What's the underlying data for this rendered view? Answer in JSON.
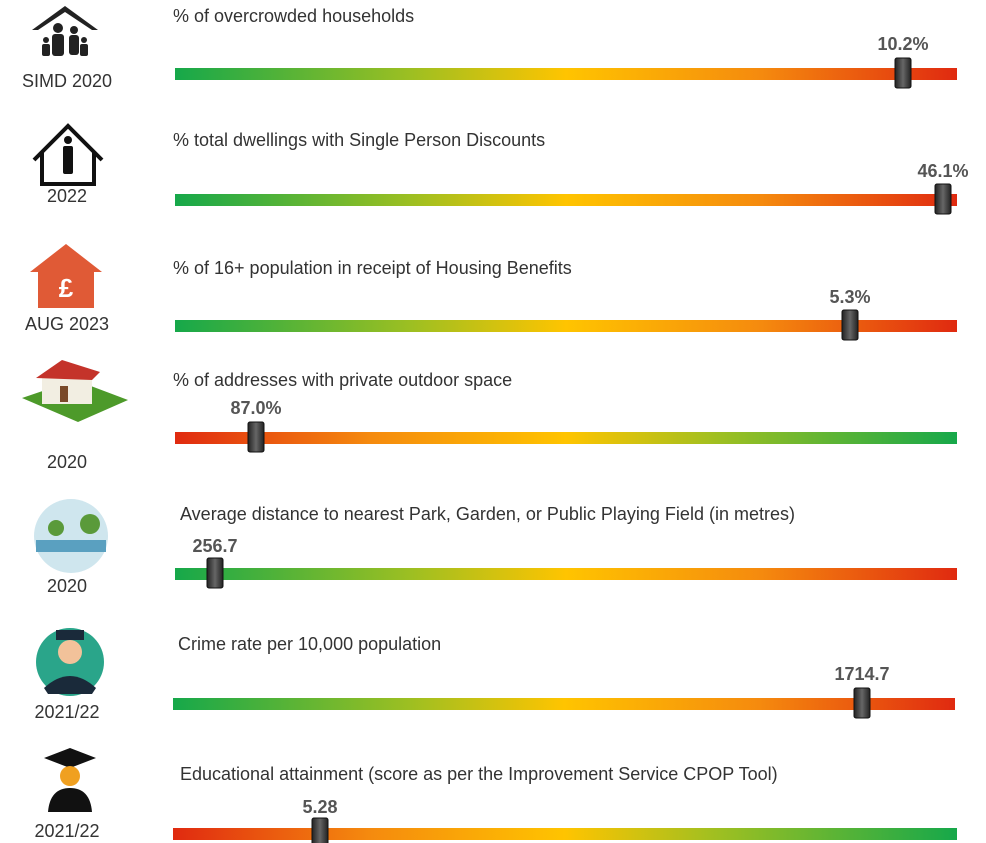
{
  "rows": [
    {
      "year": "SIMD 2020",
      "title": "% of overcrowded households",
      "value": "10.2%"
    },
    {
      "year": "2022",
      "title": "% total dwellings with Single Person Discounts",
      "value": "46.1%"
    },
    {
      "year": "AUG 2023",
      "title": "% of 16+ population in receipt of Housing Benefits",
      "value": "5.3%"
    },
    {
      "year": "2020",
      "title": "% of addresses with private outdoor space",
      "value": "87.0%"
    },
    {
      "year": "2020",
      "title": "Average distance to nearest Park, Garden, or Public Playing Field (in metres)",
      "value": "256.7"
    },
    {
      "year": "2021/22",
      "title": "Crime rate per 10,000 population",
      "value": "1714.7"
    },
    {
      "year": "2021/22",
      "title": "Educational attainment (score as per the Improvement Service CPOP Tool)",
      "value": "5.28"
    }
  ]
}
